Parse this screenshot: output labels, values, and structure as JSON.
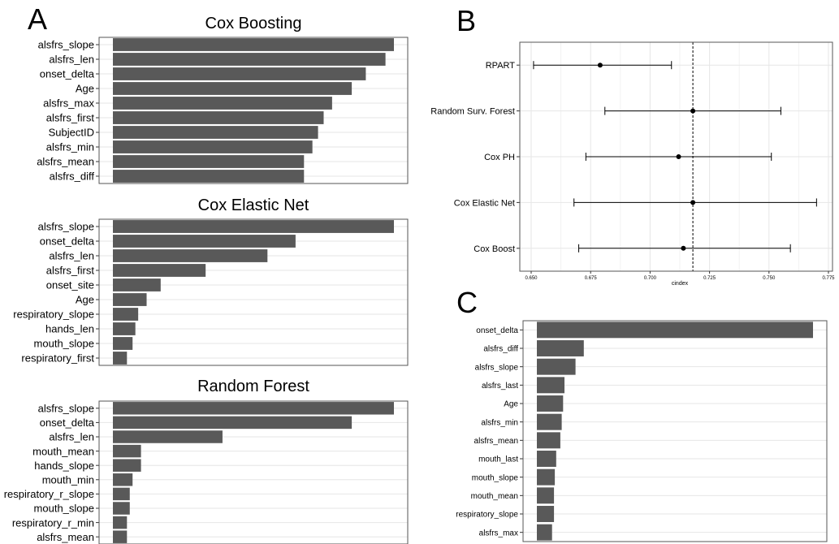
{
  "panel_labels": [
    "A",
    "B",
    "C"
  ],
  "chart_data": [
    {
      "type": "bar",
      "orientation": "horizontal",
      "panel": "A",
      "title": "Cox Boosting",
      "categories": [
        "alsfrs_slope",
        "alsfrs_len",
        "onset_delta",
        "Age",
        "alsfrs_max",
        "alsfrs_first",
        "SubjectID",
        "alsfrs_min",
        "alsfrs_mean",
        "alsfrs_diff"
      ],
      "values": [
        1.0,
        0.97,
        0.9,
        0.85,
        0.78,
        0.75,
        0.73,
        0.71,
        0.68,
        0.68
      ],
      "xlim": [
        0,
        1.0
      ],
      "grid": true
    },
    {
      "type": "bar",
      "orientation": "horizontal",
      "panel": "A",
      "title": "Cox Elastic Net",
      "categories": [
        "alsfrs_slope",
        "onset_delta",
        "alsfrs_len",
        "alsfrs_first",
        "onset_site",
        "Age",
        "respiratory_slope",
        "hands_len",
        "mouth_slope",
        "respiratory_first"
      ],
      "values": [
        1.0,
        0.65,
        0.55,
        0.33,
        0.17,
        0.12,
        0.09,
        0.08,
        0.07,
        0.05
      ],
      "xlim": [
        0,
        1.0
      ],
      "grid": true
    },
    {
      "type": "bar",
      "orientation": "horizontal",
      "panel": "A",
      "title": "Random Forest",
      "categories": [
        "alsfrs_slope",
        "onset_delta",
        "alsfrs_len",
        "mouth_mean",
        "hands_slope",
        "mouth_min",
        "respiratory_r_slope",
        "mouth_slope",
        "respiratory_r_min",
        "alsfrs_mean"
      ],
      "values": [
        1.0,
        0.85,
        0.39,
        0.1,
        0.1,
        0.07,
        0.06,
        0.06,
        0.05,
        0.05
      ],
      "xlim": [
        0,
        1.0
      ],
      "grid": true
    },
    {
      "type": "scatter",
      "panel": "B",
      "subtype": "point-errorbar",
      "xlabel": "cindex",
      "xlim": [
        0.65,
        0.775
      ],
      "xticks": [
        "0.650",
        "0.675",
        "0.700",
        "0.725",
        "0.750",
        "0.775"
      ],
      "xtick_values": [
        0.65,
        0.675,
        0.7,
        0.725,
        0.75,
        0.775
      ],
      "reference_line": 0.718,
      "categories": [
        "RPART",
        "Random Surv. Forest",
        "Cox PH",
        "Cox Elastic Net",
        "Cox Boost"
      ],
      "points": [
        {
          "label": "RPART",
          "mean": 0.679,
          "low": 0.651,
          "high": 0.709
        },
        {
          "label": "Random Surv. Forest",
          "mean": 0.718,
          "low": 0.681,
          "high": 0.755
        },
        {
          "label": "Cox PH",
          "mean": 0.712,
          "low": 0.673,
          "high": 0.751
        },
        {
          "label": "Cox Elastic Net",
          "mean": 0.718,
          "low": 0.668,
          "high": 0.77
        },
        {
          "label": "Cox Boost",
          "mean": 0.714,
          "low": 0.67,
          "high": 0.759
        }
      ],
      "grid": true
    },
    {
      "type": "bar",
      "orientation": "horizontal",
      "panel": "C",
      "categories": [
        "onset_delta",
        "alsfrs_diff",
        "alsfrs_slope",
        "alsfrs_last",
        "Age",
        "alsfrs_min",
        "alsfrs_mean",
        "mouth_last",
        "mouth_slope",
        "mouth_mean",
        "respiratory_slope",
        "alsfrs_max"
      ],
      "values": [
        1.0,
        0.17,
        0.14,
        0.1,
        0.095,
        0.09,
        0.085,
        0.07,
        0.065,
        0.062,
        0.062,
        0.055
      ],
      "xlim": [
        0,
        1.0
      ],
      "grid": true
    }
  ]
}
